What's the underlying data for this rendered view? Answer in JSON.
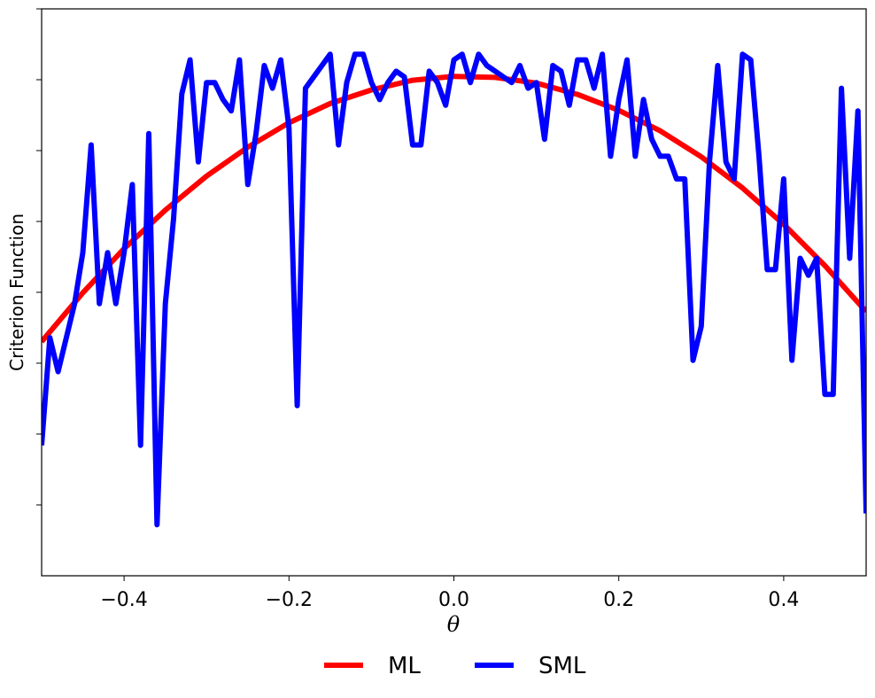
{
  "chart_data": {
    "type": "line",
    "xlabel": "θ",
    "ylabel": "Criterion Function",
    "xlim": [
      -0.5,
      0.5
    ],
    "ylim": [
      0,
      1
    ],
    "x_ticks": [
      -0.4,
      -0.2,
      0.0,
      0.2,
      0.4
    ],
    "x_tick_labels": [
      "−0.4",
      "−0.2",
      "0.0",
      "0.2",
      "0.4"
    ],
    "y_ticks": [
      0.125,
      0.25,
      0.375,
      0.5,
      0.625,
      0.75,
      0.875,
      1.0
    ],
    "y_tick_labels_visible": false,
    "grid": false,
    "legend": {
      "position": "bottom-center",
      "orientation": "horizontal"
    },
    "series": [
      {
        "name": "ML",
        "color": "#ff0000",
        "x": [
          -0.5,
          -0.45,
          -0.4,
          -0.35,
          -0.3,
          -0.25,
          -0.2,
          -0.15,
          -0.1,
          -0.05,
          0.0,
          0.05,
          0.1,
          0.15,
          0.2,
          0.25,
          0.3,
          0.35,
          0.4,
          0.45,
          0.5
        ],
        "y": [
          0.413,
          0.499,
          0.577,
          0.645,
          0.705,
          0.756,
          0.799,
          0.833,
          0.857,
          0.874,
          0.881,
          0.879,
          0.869,
          0.849,
          0.821,
          0.785,
          0.739,
          0.684,
          0.62,
          0.547,
          0.466
        ]
      },
      {
        "name": "SML",
        "color": "#0000ff",
        "x": [
          -0.5,
          -0.49,
          -0.48,
          -0.47,
          -0.46,
          -0.45,
          -0.44,
          -0.43,
          -0.42,
          -0.41,
          -0.4,
          -0.39,
          -0.38,
          -0.37,
          -0.36,
          -0.35,
          -0.34,
          -0.33,
          -0.32,
          -0.31,
          -0.3,
          -0.29,
          -0.28,
          -0.27,
          -0.26,
          -0.25,
          -0.24,
          -0.23,
          -0.22,
          -0.21,
          -0.2,
          -0.19,
          -0.18,
          -0.17,
          -0.16,
          -0.15,
          -0.14,
          -0.13,
          -0.12,
          -0.11,
          -0.1,
          -0.09,
          -0.08,
          -0.07,
          -0.06,
          -0.05,
          -0.04,
          -0.03,
          -0.02,
          -0.01,
          0.0,
          0.01,
          0.02,
          0.03,
          0.04,
          0.05,
          0.06,
          0.07,
          0.08,
          0.09,
          0.1,
          0.11,
          0.12,
          0.13,
          0.14,
          0.15,
          0.16,
          0.17,
          0.18,
          0.19,
          0.2,
          0.21,
          0.22,
          0.23,
          0.24,
          0.25,
          0.26,
          0.27,
          0.28,
          0.29,
          0.3,
          0.31,
          0.32,
          0.33,
          0.34,
          0.35,
          0.36,
          0.37,
          0.38,
          0.39,
          0.4,
          0.41,
          0.42,
          0.43,
          0.44,
          0.45,
          0.46,
          0.47,
          0.48,
          0.49,
          0.5
        ],
        "y": [
          0.23,
          0.42,
          0.36,
          0.42,
          0.48,
          0.57,
          0.76,
          0.48,
          0.57,
          0.48,
          0.57,
          0.69,
          0.23,
          0.78,
          0.09,
          0.48,
          0.63,
          0.85,
          0.91,
          0.73,
          0.87,
          0.87,
          0.84,
          0.82,
          0.91,
          0.69,
          0.78,
          0.9,
          0.86,
          0.91,
          0.79,
          0.3,
          0.86,
          0.88,
          0.9,
          0.92,
          0.76,
          0.87,
          0.92,
          0.92,
          0.87,
          0.84,
          0.87,
          0.89,
          0.88,
          0.76,
          0.76,
          0.89,
          0.87,
          0.83,
          0.91,
          0.92,
          0.87,
          0.92,
          0.9,
          0.89,
          0.88,
          0.87,
          0.9,
          0.86,
          0.87,
          0.77,
          0.9,
          0.89,
          0.83,
          0.91,
          0.91,
          0.86,
          0.92,
          0.74,
          0.84,
          0.91,
          0.74,
          0.84,
          0.77,
          0.74,
          0.74,
          0.7,
          0.7,
          0.38,
          0.44,
          0.73,
          0.9,
          0.73,
          0.7,
          0.92,
          0.91,
          0.74,
          0.54,
          0.54,
          0.7,
          0.38,
          0.56,
          0.53,
          0.56,
          0.32,
          0.32,
          0.86,
          0.56,
          0.82,
          0.11
        ]
      }
    ]
  }
}
